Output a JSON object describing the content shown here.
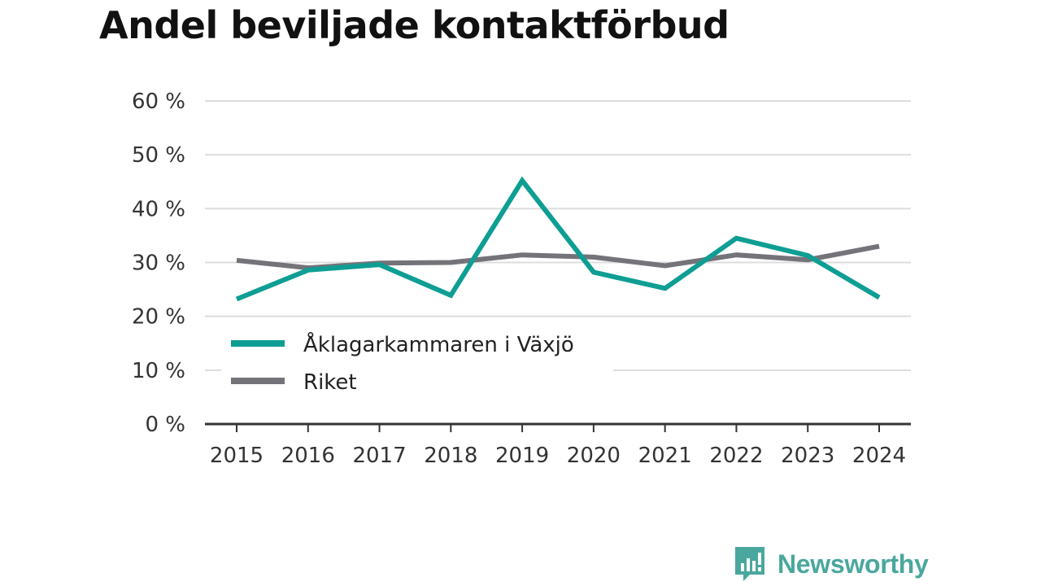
{
  "brand": {
    "name": "Newsworthy",
    "icon": "bar-chart-speech-bubble-icon",
    "color": "#4aa79e"
  },
  "chart_data": {
    "type": "line",
    "title": "Andel beviljade kontaktförbud",
    "xlabel": "",
    "ylabel": "",
    "x": [
      "2015",
      "2016",
      "2017",
      "2018",
      "2019",
      "2020",
      "2021",
      "2022",
      "2023",
      "2024"
    ],
    "ylim": [
      0,
      60
    ],
    "yticks": [
      0,
      10,
      20,
      30,
      40,
      50,
      60
    ],
    "ytick_labels": [
      "0 %",
      "10 %",
      "20 %",
      "30 %",
      "40 %",
      "50 %",
      "60 %"
    ],
    "grid": true,
    "legend_position": "bottom-left inside",
    "series": [
      {
        "name": "Åklagarkammaren i Växjö",
        "color": "#0e9e93",
        "values": [
          23.2,
          28.6,
          29.6,
          23.9,
          45.2,
          28.2,
          25.2,
          34.5,
          31.3,
          23.5
        ]
      },
      {
        "name": "Riket",
        "color": "#74737a",
        "values": [
          30.4,
          29.0,
          29.9,
          30.0,
          31.4,
          31.0,
          29.4,
          31.4,
          30.5,
          33.0
        ]
      }
    ]
  }
}
